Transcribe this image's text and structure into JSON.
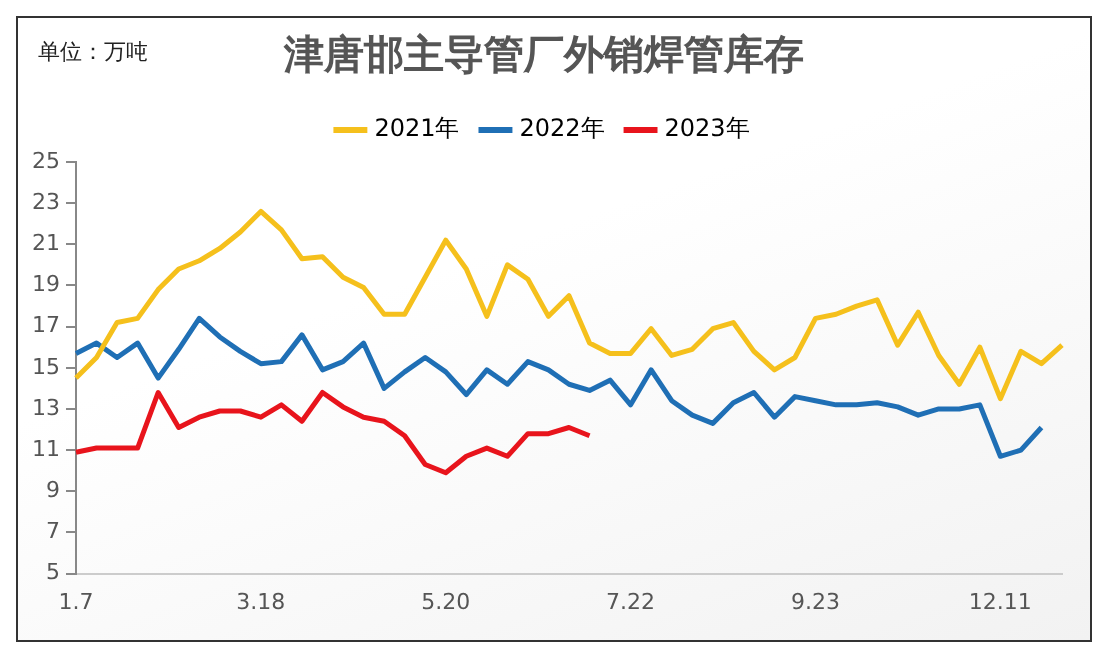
{
  "chart_data": {
    "type": "line",
    "title": "津唐邯主导管厂外销焊管库存",
    "annotations": [
      "单位：万吨"
    ],
    "categories": [
      "1.7",
      null,
      null,
      null,
      null,
      null,
      null,
      null,
      null,
      "3.18",
      null,
      null,
      null,
      null,
      null,
      null,
      null,
      null,
      "5.20",
      null,
      null,
      null,
      null,
      null,
      null,
      null,
      null,
      "7.22",
      null,
      null,
      null,
      null,
      null,
      null,
      null,
      null,
      "9.23",
      null,
      null,
      null,
      null,
      null,
      null,
      null,
      null,
      "12.11",
      null,
      null,
      null
    ],
    "series": [
      {
        "name": "2021年",
        "color": "#f5c01c",
        "values": [
          14.5,
          15.5,
          17.2,
          17.4,
          18.8,
          19.8,
          20.2,
          20.8,
          21.6,
          22.6,
          21.7,
          20.3,
          20.4,
          19.4,
          18.9,
          17.6,
          17.6,
          19.4,
          21.2,
          19.8,
          17.5,
          20.0,
          19.3,
          17.5,
          18.5,
          16.2,
          15.7,
          15.7,
          16.9,
          15.6,
          15.9,
          16.9,
          17.2,
          15.8,
          14.9,
          15.5,
          17.4,
          17.6,
          18.0,
          18.3,
          16.1,
          17.7,
          15.6,
          14.2,
          16.0,
          13.5,
          15.8,
          15.2,
          16.1
        ]
      },
      {
        "name": "2022年",
        "color": "#1f6fb5",
        "values": [
          15.7,
          16.2,
          15.5,
          16.2,
          14.5,
          15.9,
          17.4,
          16.5,
          15.8,
          15.2,
          15.3,
          16.6,
          14.9,
          15.3,
          16.2,
          14.0,
          14.8,
          15.5,
          14.8,
          13.7,
          14.9,
          14.2,
          15.3,
          14.9,
          14.2,
          13.9,
          14.4,
          13.2,
          14.9,
          13.4,
          12.7,
          12.3,
          13.3,
          13.8,
          12.6,
          13.6,
          13.4,
          13.2,
          13.2,
          13.3,
          13.1,
          12.7,
          13.0,
          13.0,
          13.2,
          10.7,
          11.0,
          12.1,
          null
        ]
      },
      {
        "name": "2023年",
        "color": "#e8141c",
        "values": [
          10.9,
          11.1,
          11.1,
          11.1,
          13.8,
          12.1,
          12.6,
          12.9,
          12.9,
          12.6,
          13.2,
          12.4,
          13.8,
          13.1,
          12.6,
          12.4,
          11.7,
          10.3,
          9.9,
          10.7,
          11.1,
          10.7,
          11.8,
          11.8,
          12.1,
          11.7,
          null,
          null,
          null,
          null,
          null,
          null,
          null,
          null,
          null,
          null,
          null,
          null,
          null,
          null,
          null,
          null,
          null,
          null,
          null,
          null,
          null,
          null,
          null
        ]
      }
    ],
    "ylim": [
      5,
      25
    ],
    "yticks": [
      5,
      7,
      9,
      11,
      13,
      15,
      17,
      19,
      21,
      23,
      25
    ],
    "grid": false,
    "legend": "top",
    "marker": "none",
    "line_style": "solid"
  }
}
